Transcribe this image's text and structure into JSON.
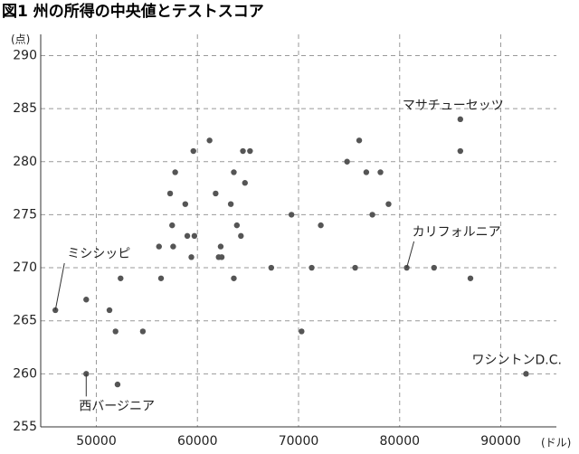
{
  "chart_data": {
    "type": "scatter",
    "title": "図1 州の所得の中央値とテストスコア",
    "y_unit": "(点)",
    "x_unit": "(ドル)",
    "xlim": [
      44500,
      95500
    ],
    "ylim": [
      255,
      292
    ],
    "xticks": [
      50000,
      60000,
      70000,
      80000,
      90000
    ],
    "yticks": [
      255,
      260,
      265,
      270,
      275,
      280,
      285,
      290
    ],
    "grid": true,
    "color": "#555555",
    "x": [
      45950,
      49000,
      49000,
      51300,
      51900,
      52400,
      52100,
      54600,
      56200,
      56400,
      57300,
      57500,
      57600,
      57800,
      58800,
      59000,
      59400,
      59600,
      59700,
      61200,
      61800,
      62100,
      62300,
      62400,
      63300,
      63600,
      63600,
      63900,
      64300,
      64500,
      64700,
      65200,
      67300,
      69300,
      70300,
      71300,
      72200,
      74800,
      75600,
      76000,
      76700,
      77300,
      78100,
      78900,
      80700,
      83400,
      86000,
      86000,
      87000,
      92500
    ],
    "values": [
      266,
      267,
      260,
      266,
      264,
      269,
      259,
      264,
      272,
      269,
      277,
      274,
      272,
      279,
      276,
      273,
      271,
      281,
      273,
      282,
      277,
      271,
      272,
      271,
      276,
      279,
      269,
      274,
      273,
      281,
      278,
      281,
      270,
      275,
      264,
      270,
      274,
      280,
      270,
      282,
      279,
      275,
      279,
      276,
      270,
      270,
      284,
      281,
      269,
      260
    ],
    "point_labels": [
      "ミシシッピ",
      null,
      "西バージニア",
      null,
      null,
      null,
      null,
      null,
      null,
      null,
      null,
      null,
      null,
      null,
      null,
      null,
      null,
      null,
      null,
      null,
      null,
      null,
      null,
      null,
      null,
      null,
      null,
      null,
      null,
      null,
      null,
      null,
      null,
      null,
      null,
      null,
      null,
      null,
      null,
      null,
      null,
      null,
      null,
      null,
      "カリフォルニア",
      null,
      "マサチューセッツ",
      null,
      null,
      "ワシントンD.C."
    ]
  }
}
